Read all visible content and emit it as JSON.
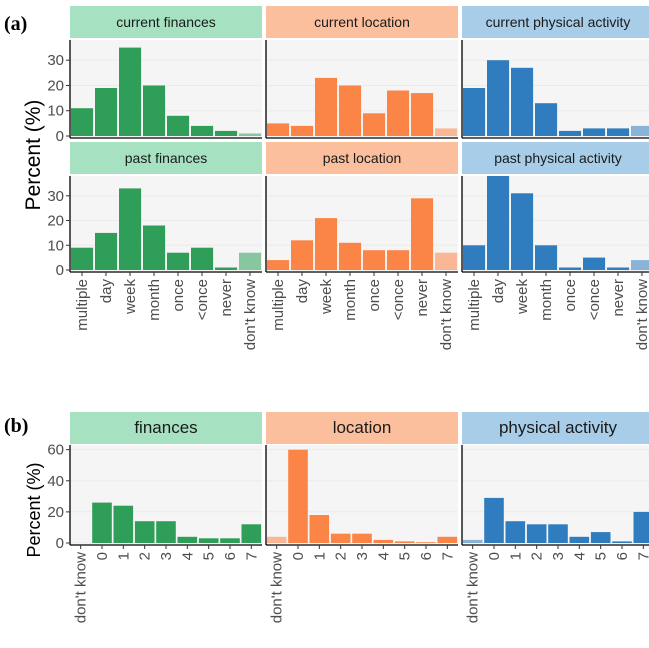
{
  "chart_data": [
    {
      "type": "bar",
      "panel_label": "(a)",
      "ylabel": "Percent (%)",
      "categories": [
        "multiple",
        "day",
        "week",
        "month",
        "once",
        "<once",
        "never",
        "don't know"
      ],
      "ylim": [
        0,
        38
      ],
      "yticks": [
        "0",
        "10",
        "20",
        "30"
      ],
      "grid": true,
      "facets": [
        {
          "title": "current finances",
          "color": "#2e9e58",
          "strip_color": "#a6e2c2",
          "values": [
            11,
            19,
            35,
            20,
            8,
            4,
            2,
            1
          ]
        },
        {
          "title": "current location",
          "color": "#fb8447",
          "strip_color": "#fbbf9e",
          "values": [
            5,
            4,
            23,
            20,
            9,
            18,
            17,
            3
          ]
        },
        {
          "title": "current physical activity",
          "color": "#2f7dbf",
          "strip_color": "#a8cde9",
          "values": [
            19,
            30,
            27,
            13,
            2,
            3,
            3,
            4
          ]
        },
        {
          "title": "past finances",
          "color": "#2e9e58",
          "strip_color": "#a6e2c2",
          "values": [
            9,
            15,
            33,
            18,
            7,
            9,
            1,
            7
          ]
        },
        {
          "title": "past location",
          "color": "#fb8447",
          "strip_color": "#fbbf9e",
          "values": [
            4,
            12,
            21,
            11,
            8,
            8,
            29,
            7
          ]
        },
        {
          "title": "past physical activity",
          "color": "#2f7dbf",
          "strip_color": "#a8cde9",
          "values": [
            10,
            38,
            31,
            10,
            1,
            5,
            1,
            4
          ]
        }
      ]
    },
    {
      "type": "bar",
      "panel_label": "(b)",
      "ylabel": "Percent (%)",
      "categories": [
        "don't know",
        "0",
        "1",
        "2",
        "3",
        "4",
        "5",
        "6",
        "7"
      ],
      "ylim": [
        0,
        63
      ],
      "yticks": [
        "0",
        "20",
        "40",
        "60"
      ],
      "grid": true,
      "facets": [
        {
          "title": "finances",
          "color": "#2e9e58",
          "strip_color": "#a6e2c2",
          "values": [
            0,
            26,
            24,
            14,
            14,
            4,
            3,
            3,
            12
          ]
        },
        {
          "title": "location",
          "color": "#fb8447",
          "strip_color": "#fbbf9e",
          "values": [
            4,
            60,
            18,
            6,
            6,
            2,
            1,
            0.5,
            4
          ]
        },
        {
          "title": "physical activity",
          "color": "#2f7dbf",
          "strip_color": "#a8cde9",
          "values": [
            2,
            29,
            14,
            12,
            12,
            4,
            7,
            1,
            20
          ]
        }
      ]
    }
  ]
}
